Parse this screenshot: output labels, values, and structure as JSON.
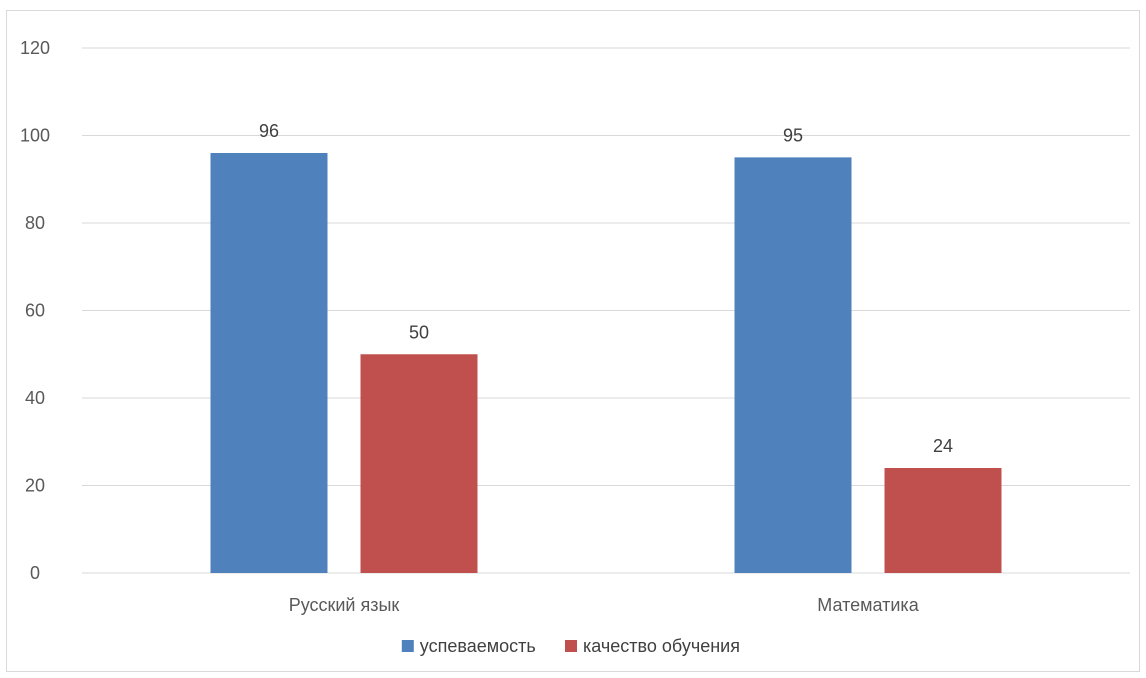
{
  "chart_data": {
    "type": "bar",
    "categories": [
      "Русский язык",
      "Математика"
    ],
    "series": [
      {
        "name": "успеваемость",
        "values": [
          96,
          95
        ],
        "color": "#4f81bd"
      },
      {
        "name": "качество обучения",
        "values": [
          50,
          24
        ],
        "color": "#c0504d"
      }
    ],
    "ylim": [
      0,
      120
    ],
    "yticks": [
      0,
      20,
      40,
      60,
      80,
      100,
      120
    ],
    "grid": true,
    "legend": "bottom",
    "gridline_color": "#d9d9d9"
  }
}
